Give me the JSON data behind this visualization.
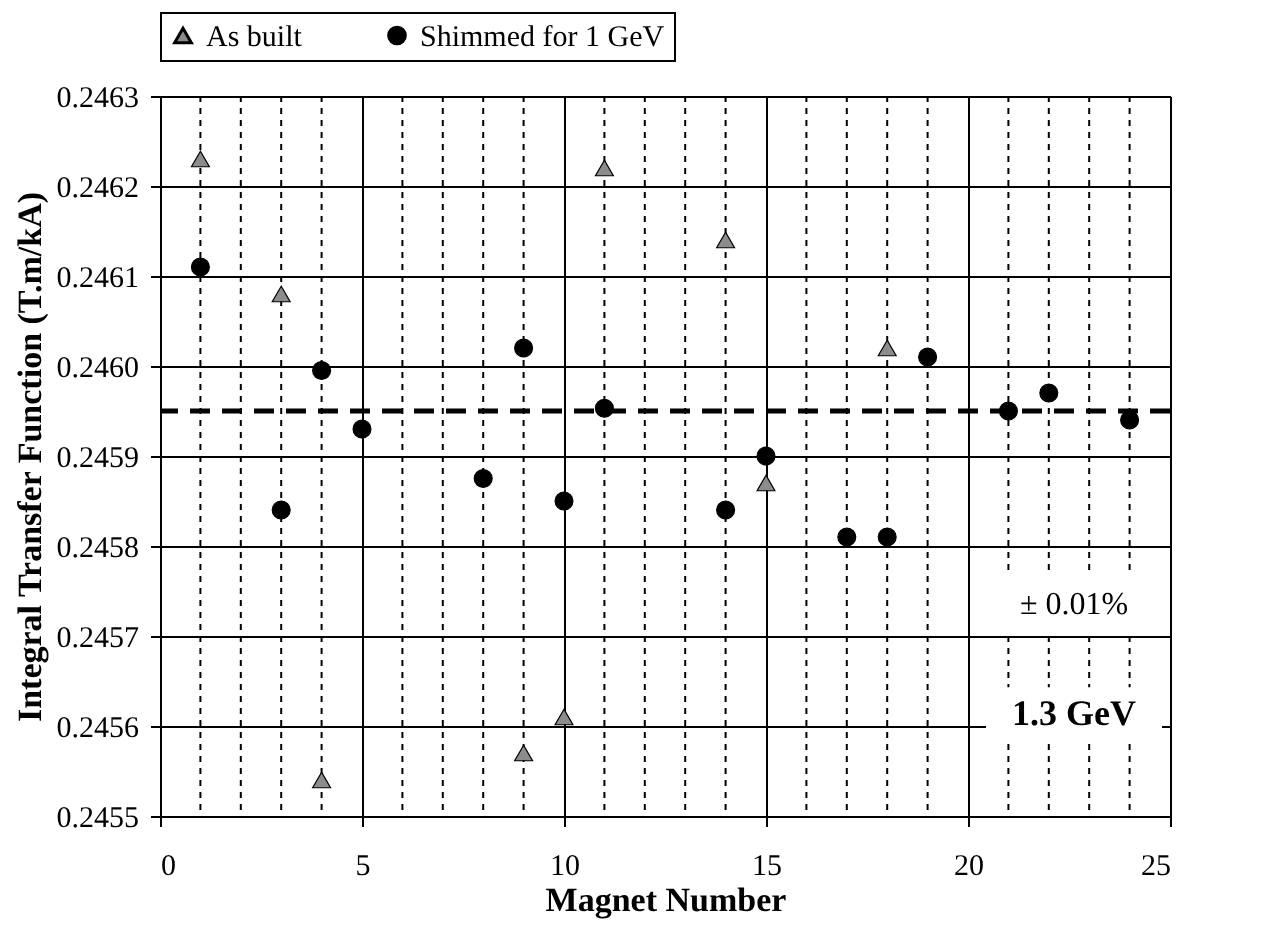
{
  "chart_data": {
    "type": "scatter",
    "xlabel": "Magnet Number",
    "ylabel": "Integral Transfer Function (T.m/kA)",
    "xlim": [
      0,
      25
    ],
    "xticks": [
      0,
      5,
      10,
      15,
      20,
      25
    ],
    "ylim": [
      0.2455,
      0.2463
    ],
    "yticks": [
      0.2455,
      0.2456,
      0.2457,
      0.2458,
      0.2459,
      {
        "value": 0.246,
        "label": "0.2460"
      },
      0.2461,
      0.2462,
      0.2463
    ],
    "grid": true,
    "legend": "top",
    "series": [
      {
        "name": "As built",
        "color": "#8c8c8c",
        "marker": "triangle",
        "x": [
          1,
          3,
          4,
          9,
          10,
          11,
          14,
          15,
          18
        ],
        "values": [
          0.24623,
          0.24608,
          0.24554,
          0.24557,
          0.24561,
          0.24622,
          0.24614,
          0.24587,
          0.24602
        ]
      },
      {
        "name": "Shimmed for 1 GeV",
        "color": "#000000",
        "marker": "circle",
        "x": [
          1,
          3,
          4,
          5,
          8,
          9,
          10,
          11,
          14,
          15,
          17,
          18,
          19,
          21,
          22,
          24
        ],
        "values": [
          0.24611,
          0.24584,
          0.245995,
          0.24593,
          0.245875,
          0.24602,
          0.24585,
          0.245953,
          0.24584,
          0.2459,
          0.24581,
          0.24581,
          0.24601,
          0.24595,
          0.24597,
          0.24594
        ]
      }
    ],
    "ref_lines": [
      {
        "axis": "y",
        "value": 0.24595,
        "line_style": "dashed",
        "color": "#000000"
      }
    ],
    "annotations": [
      "± 0.01%",
      "1.3 GeV"
    ]
  }
}
